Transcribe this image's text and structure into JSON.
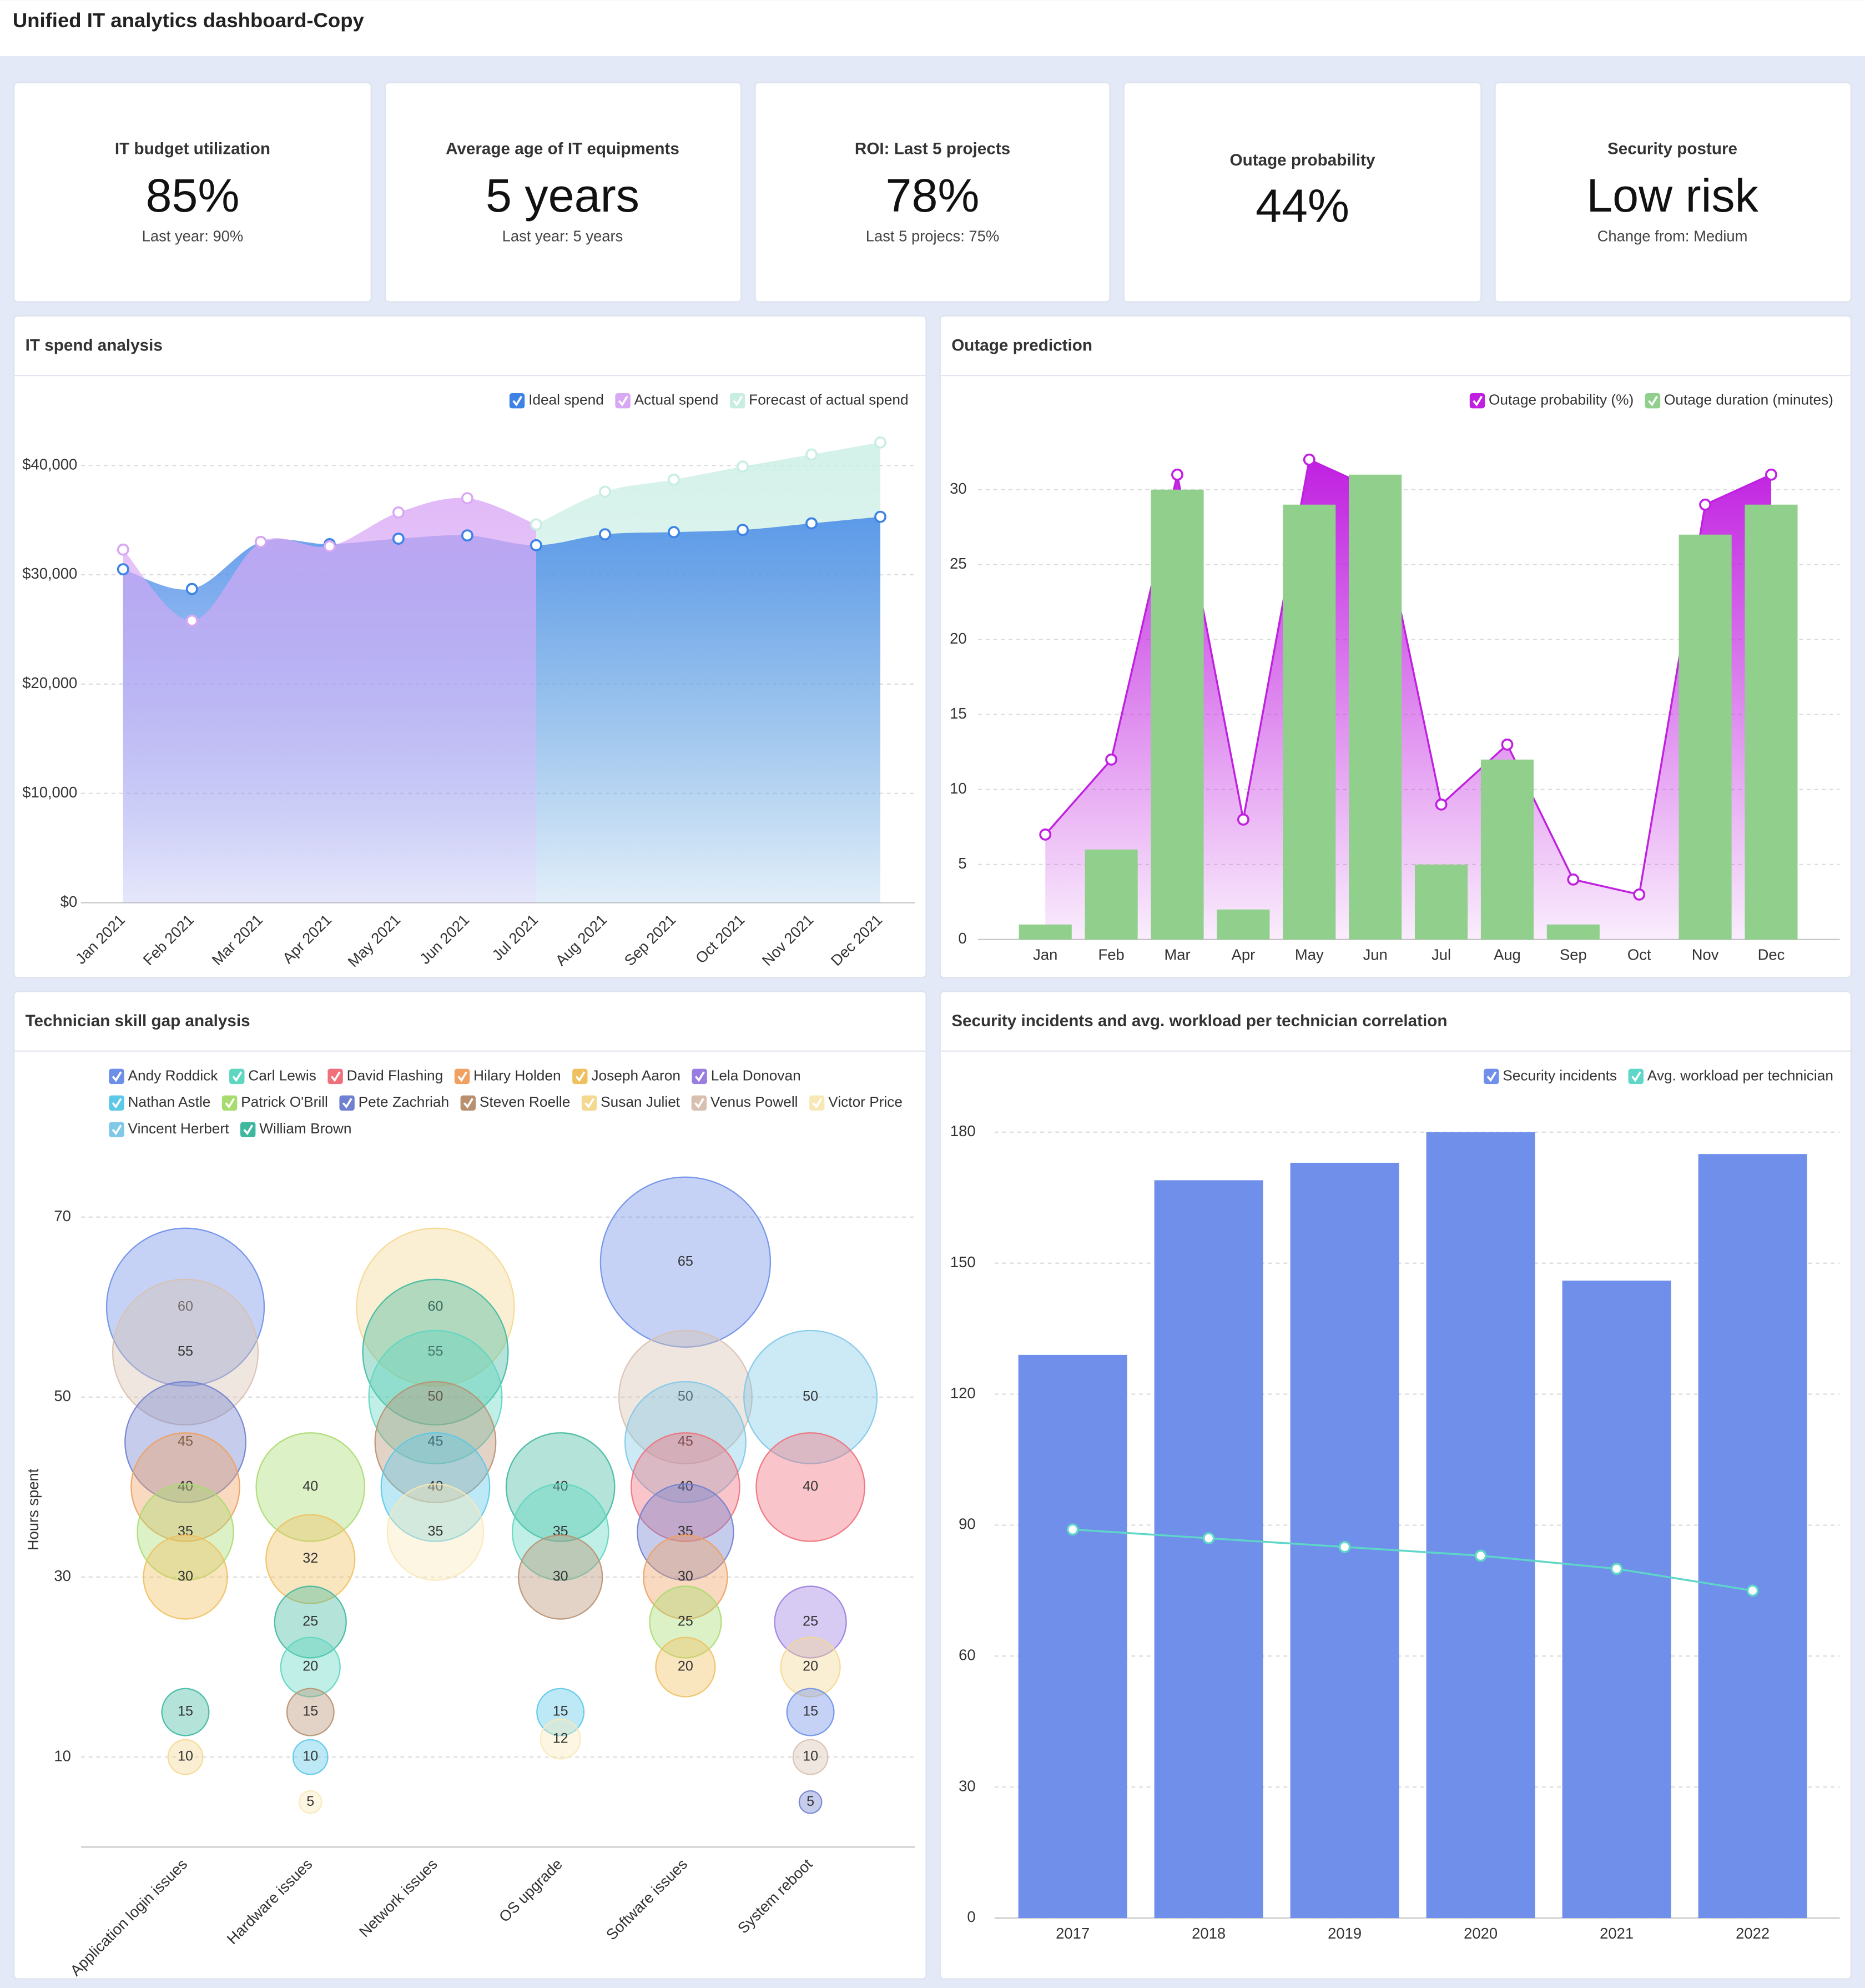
{
  "title": "Unified IT analytics dashboard-Copy",
  "kpis": [
    {
      "title": "IT budget utilization",
      "value": "85%",
      "note": "Last year: 90%"
    },
    {
      "title": "Average age of IT equipments",
      "value": "5 years",
      "note": "Last year: 5 years"
    },
    {
      "title": "ROI: Last 5 projects",
      "value": "78%",
      "note": "Last 5 projecs: 75%"
    },
    {
      "title": "Outage probability",
      "value": "44%"
    },
    {
      "title": "Security posture",
      "value": "Low risk",
      "note": "Change from: Medium"
    }
  ],
  "chart_data": [
    {
      "type": "area",
      "title": "IT spend analysis",
      "legend": "top-right",
      "grid": true,
      "categories": [
        "Jan 2021",
        "Feb 2021",
        "Mar 2021",
        "Apr 2021",
        "May 2021",
        "Jun 2021",
        "Jul 2021",
        "Aug 2021",
        "Sep 2021",
        "Oct 2021",
        "Nov 2021",
        "Dec 2021"
      ],
      "series": [
        {
          "name": "Ideal spend",
          "color": "#3d83e6",
          "values": [
            30500,
            28700,
            33000,
            32800,
            33300,
            33600,
            32700,
            33700,
            33900,
            34100,
            34700,
            35300
          ]
        },
        {
          "name": "Actual spend",
          "color": "#d9a8f5",
          "values": [
            32300,
            25800,
            33000,
            32600,
            35700,
            37000,
            34600,
            null,
            null,
            null,
            null,
            null
          ]
        },
        {
          "name": "Forecast of actual spend",
          "color": "#c8eee4",
          "values": [
            null,
            null,
            null,
            null,
            null,
            null,
            34600,
            37600,
            38700,
            39900,
            41000,
            42100
          ]
        }
      ],
      "ylim": [
        0,
        44000
      ],
      "yticks": [
        {
          "value": 0,
          "label": "$0"
        },
        {
          "value": 10000,
          "label": "$10,000"
        },
        {
          "value": 20000,
          "label": "$20,000"
        },
        {
          "value": 30000,
          "label": "$30,000"
        },
        {
          "value": 40000,
          "label": "$40,000"
        }
      ]
    },
    {
      "type": "combo",
      "title": "Outage prediction",
      "legend": "top-right",
      "grid": true,
      "categories": [
        "Jan",
        "Feb",
        "Mar",
        "Apr",
        "May",
        "Jun",
        "Jul",
        "Aug",
        "Sep",
        "Oct",
        "Nov",
        "Dec"
      ],
      "series": [
        {
          "name": "Outage probability (%)",
          "type": "area",
          "color": "#c020e0",
          "values": [
            7,
            12,
            31,
            8,
            32,
            30,
            9,
            13,
            4,
            3,
            29,
            31
          ]
        },
        {
          "name": "Outage duration (minutes)",
          "type": "bar",
          "color": "#90d08c",
          "values": [
            1,
            6,
            30,
            2,
            29,
            31,
            5,
            12,
            1,
            0,
            27,
            29
          ]
        }
      ],
      "ylim": [
        0,
        33
      ],
      "yticks": [
        0,
        5,
        10,
        15,
        20,
        25,
        30
      ]
    },
    {
      "type": "bubble",
      "title": "Technician skill gap analysis",
      "legend": "top-left",
      "grid": true,
      "y_label": "Hours spent",
      "categories": [
        "Application login issues",
        "Hardware issues",
        "Network issues",
        "OS upgrade",
        "Software issues",
        "System reboot"
      ],
      "series": [
        {
          "name": "Andy Roddick",
          "color": "#6d8fe8",
          "values": [
            60,
            null,
            null,
            null,
            65,
            15
          ]
        },
        {
          "name": "Carl Lewis",
          "color": "#5ed6c0",
          "values": [
            null,
            20,
            50,
            35,
            null,
            null
          ]
        },
        {
          "name": "David Flashing",
          "color": "#ef6f7a",
          "values": [
            null,
            null,
            null,
            null,
            40,
            40
          ]
        },
        {
          "name": "Hilary Holden",
          "color": "#f0a060",
          "values": [
            40,
            null,
            null,
            null,
            30,
            null
          ]
        },
        {
          "name": "Joseph Aaron",
          "color": "#f0c060",
          "values": [
            30,
            32,
            null,
            null,
            20,
            null
          ]
        },
        {
          "name": "Lela Donovan",
          "color": "#9a7de0",
          "values": [
            null,
            null,
            null,
            null,
            null,
            25
          ]
        },
        {
          "name": "Nathan Astle",
          "color": "#5bc8e8",
          "values": [
            null,
            10,
            40,
            15,
            null,
            null
          ]
        },
        {
          "name": "Patrick O'Brill",
          "color": "#a8dc70",
          "values": [
            35,
            40,
            null,
            null,
            25,
            null
          ]
        },
        {
          "name": "Pete Zachriah",
          "color": "#7080d0",
          "values": [
            45,
            null,
            null,
            null,
            35,
            5
          ]
        },
        {
          "name": "Steven Roelle",
          "color": "#b89070",
          "values": [
            null,
            15,
            45,
            30,
            null,
            null
          ]
        },
        {
          "name": "Susan Juliet",
          "color": "#f5d890",
          "values": [
            10,
            null,
            60,
            null,
            null,
            20
          ]
        },
        {
          "name": "Venus Powell",
          "color": "#d8c0b0",
          "values": [
            55,
            null,
            null,
            null,
            50,
            10
          ]
        },
        {
          "name": "Victor Price",
          "color": "#f8e8b8",
          "values": [
            null,
            5,
            35,
            12,
            null,
            null
          ]
        },
        {
          "name": "Vincent Herbert",
          "color": "#80c8e8",
          "values": [
            null,
            null,
            null,
            null,
            45,
            50
          ]
        },
        {
          "name": "William Brown",
          "color": "#40b8a0",
          "values": [
            15,
            25,
            55,
            40,
            null,
            null
          ]
        }
      ],
      "ylim": [
        0,
        75
      ],
      "yticks": [
        10,
        30,
        50,
        70
      ]
    },
    {
      "type": "combo",
      "title": "Security incidents and avg. workload per technician correlation",
      "legend": "top-right",
      "grid": true,
      "categories": [
        "2017",
        "2018",
        "2019",
        "2020",
        "2021",
        "2022"
      ],
      "series": [
        {
          "name": "Security incidents",
          "type": "bar",
          "color": "#6f8fea",
          "values": [
            129,
            169,
            173,
            180,
            146,
            175
          ]
        },
        {
          "name": "Avg. workload per technician",
          "type": "line",
          "color": "#5ed6c8",
          "values": [
            89,
            87,
            85,
            83,
            80,
            75
          ]
        }
      ],
      "ylim": [
        0,
        190
      ],
      "yticks": [
        0,
        30,
        60,
        90,
        120,
        150,
        180
      ]
    }
  ]
}
